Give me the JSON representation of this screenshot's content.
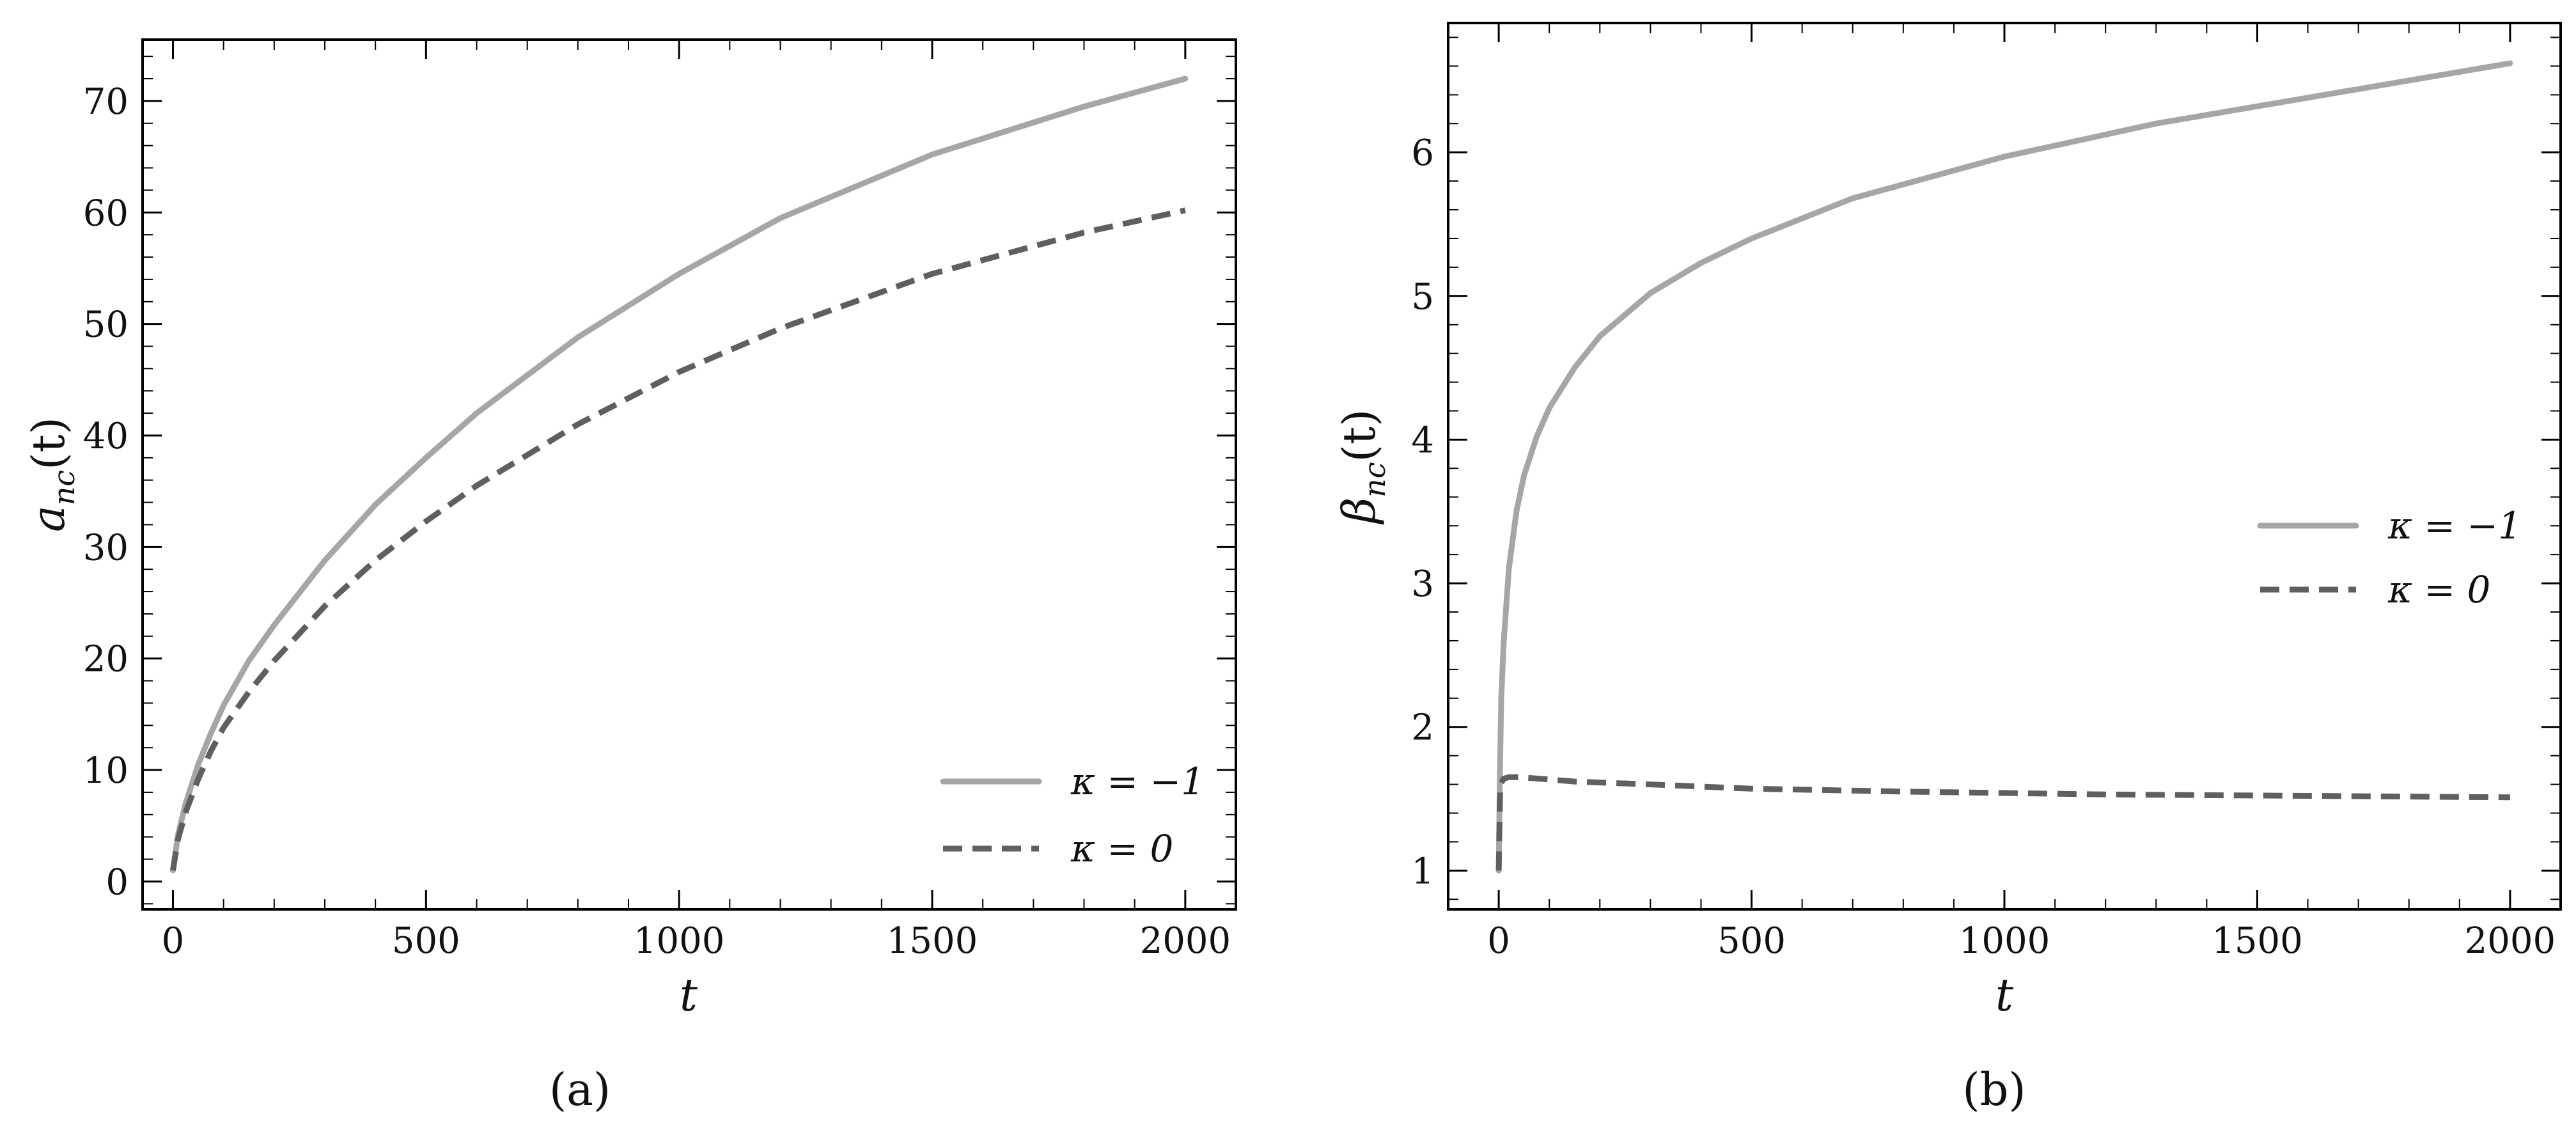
{
  "chart_data": [
    {
      "type": "line",
      "panel_label": "(a)",
      "xlabel": "t",
      "ylabel": "a_nc(t)",
      "ylabel_main": "a",
      "ylabel_sub": "nc",
      "ylabel_tail": "(t)",
      "xlim": [
        -60,
        2100
      ],
      "ylim": [
        -2.5,
        75.5
      ],
      "xticks": [
        0,
        500,
        1000,
        1500,
        2000
      ],
      "xtick_labels": [
        "0",
        "500",
        "1000",
        "1500",
        "2000"
      ],
      "yticks": [
        0,
        10,
        20,
        30,
        40,
        50,
        60,
        70
      ],
      "ytick_labels": [
        "0",
        "10",
        "20",
        "30",
        "40",
        "50",
        "60",
        "70"
      ],
      "legend_position": "lower-right",
      "series": [
        {
          "name": "κ = −1",
          "style": "solid",
          "color": "#a6a6a6",
          "x": [
            0,
            10,
            25,
            50,
            75,
            100,
            150,
            200,
            300,
            400,
            500,
            600,
            800,
            1000,
            1200,
            1500,
            1800,
            2000
          ],
          "y": [
            1.0,
            4.2,
            7.0,
            10.5,
            13.3,
            15.8,
            19.8,
            23.0,
            28.8,
            33.8,
            38.0,
            42.0,
            48.8,
            54.5,
            59.5,
            65.2,
            69.5,
            72.0
          ]
        },
        {
          "name": "κ = 0",
          "style": "dashed",
          "color": "#5f5f5f",
          "x": [
            0,
            10,
            25,
            50,
            75,
            100,
            150,
            200,
            300,
            400,
            500,
            600,
            800,
            1000,
            1200,
            1500,
            1800,
            2000
          ],
          "y": [
            1.0,
            3.8,
            6.2,
            9.2,
            11.7,
            13.8,
            17.0,
            19.8,
            24.7,
            28.8,
            32.3,
            35.5,
            41.0,
            45.7,
            49.6,
            54.5,
            58.2,
            60.2
          ]
        }
      ]
    },
    {
      "type": "line",
      "panel_label": "(b)",
      "xlabel": "t",
      "ylabel": "β_nc(t)",
      "ylabel_main": "β",
      "ylabel_sub": "nc",
      "ylabel_tail": "(t)",
      "xlim": [
        -100,
        2100
      ],
      "ylim": [
        0.73,
        6.9
      ],
      "xticks": [
        0,
        500,
        1000,
        1500,
        2000
      ],
      "xtick_labels": [
        "0",
        "500",
        "1000",
        "1500",
        "2000"
      ],
      "yticks": [
        1,
        2,
        3,
        4,
        5,
        6
      ],
      "ytick_labels": [
        "1",
        "2",
        "3",
        "4",
        "5",
        "6"
      ],
      "legend_position": "center-right",
      "series": [
        {
          "name": "κ = −1",
          "style": "solid",
          "color": "#a6a6a6",
          "x": [
            0,
            2,
            5,
            10,
            20,
            35,
            50,
            75,
            100,
            150,
            200,
            300,
            400,
            500,
            700,
            1000,
            1300,
            1600,
            2000
          ],
          "y": [
            1.0,
            1.6,
            2.2,
            2.6,
            3.1,
            3.5,
            3.75,
            4.02,
            4.22,
            4.5,
            4.72,
            5.02,
            5.23,
            5.4,
            5.68,
            5.97,
            6.2,
            6.38,
            6.62
          ]
        },
        {
          "name": "κ = 0",
          "style": "dashed",
          "color": "#5f5f5f",
          "x": [
            0,
            3,
            10,
            20,
            40,
            80,
            150,
            300,
            500,
            800,
            1200,
            1600,
            2000
          ],
          "y": [
            1.0,
            1.6,
            1.64,
            1.65,
            1.65,
            1.64,
            1.62,
            1.6,
            1.57,
            1.55,
            1.53,
            1.52,
            1.51
          ]
        }
      ]
    }
  ]
}
